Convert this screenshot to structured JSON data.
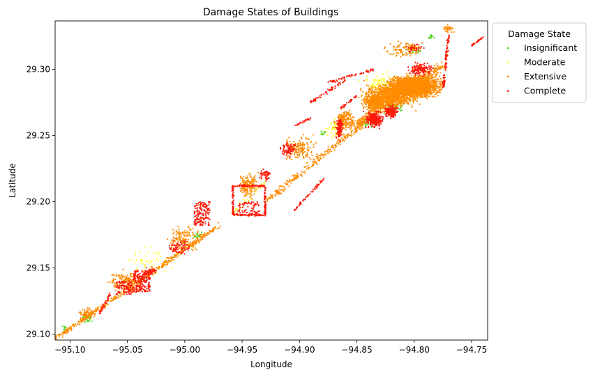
{
  "chart_data": {
    "type": "scatter",
    "title": "Damage States of Buildings",
    "xlabel": "Longitude",
    "ylabel": "Latitude",
    "xlim": [
      -95.113,
      -94.736
    ],
    "ylim": [
      29.0955,
      29.3365
    ],
    "xticks": [
      -95.1,
      -95.05,
      -95.0,
      -94.95,
      -94.9,
      -94.85,
      -94.8,
      -94.75
    ],
    "xtick_labels": [
      "−95.10",
      "−95.05",
      "−95.00",
      "−94.95",
      "−94.90",
      "−94.85",
      "−94.80",
      "−94.75"
    ],
    "yticks": [
      29.1,
      29.15,
      29.2,
      29.25,
      29.3
    ],
    "ytick_labels": [
      "29.10",
      "29.15",
      "29.20",
      "29.25",
      "29.30"
    ],
    "grid": false,
    "legend_title": "Damage State",
    "legend_position": "outside-top-right",
    "series": [
      {
        "name": "Insignificant",
        "color": "#5ad32a"
      },
      {
        "name": "Moderate",
        "color": "#ffff33"
      },
      {
        "name": "Extensive",
        "color": "#ff8c00"
      },
      {
        "name": "Complete",
        "color": "#ff1a0a"
      }
    ],
    "point_groups": [
      {
        "series": "Extensive",
        "kind": "line",
        "from": [
          -95.112,
          29.097
        ],
        "to": [
          -94.97,
          29.182
        ],
        "width": 0.003,
        "n": 420
      },
      {
        "series": "Extensive",
        "kind": "line",
        "from": [
          -94.93,
          29.2
        ],
        "to": [
          -94.84,
          29.262
        ],
        "width": 0.004,
        "n": 260
      },
      {
        "series": "Extensive",
        "kind": "line",
        "from": [
          -94.85,
          29.258
        ],
        "to": [
          -94.775,
          29.303
        ],
        "width": 0.006,
        "n": 500
      },
      {
        "series": "Extensive",
        "kind": "blob",
        "center": [
          -94.8,
          29.287
        ],
        "spread": [
          0.028,
          0.01
        ],
        "n": 2400
      },
      {
        "series": "Extensive",
        "kind": "blob",
        "center": [
          -94.82,
          29.28
        ],
        "spread": [
          0.03,
          0.012
        ],
        "n": 900
      },
      {
        "series": "Extensive",
        "kind": "blob",
        "center": [
          -94.835,
          29.275
        ],
        "spread": [
          0.012,
          0.008
        ],
        "n": 400
      },
      {
        "series": "Extensive",
        "kind": "blob",
        "center": [
          -94.86,
          29.262
        ],
        "spread": [
          0.012,
          0.01
        ],
        "n": 180
      },
      {
        "series": "Extensive",
        "kind": "blob",
        "center": [
          -94.9,
          29.24
        ],
        "spread": [
          0.018,
          0.012
        ],
        "n": 160
      },
      {
        "series": "Extensive",
        "kind": "blob",
        "center": [
          -94.945,
          29.212
        ],
        "spread": [
          0.012,
          0.012
        ],
        "n": 160
      },
      {
        "series": "Extensive",
        "kind": "blob",
        "center": [
          -95.0,
          29.172
        ],
        "spread": [
          0.018,
          0.012
        ],
        "n": 140
      },
      {
        "series": "Extensive",
        "kind": "blob",
        "center": [
          -95.05,
          29.14
        ],
        "spread": [
          0.02,
          0.01
        ],
        "n": 160
      },
      {
        "series": "Extensive",
        "kind": "blob",
        "center": [
          -95.085,
          29.115
        ],
        "spread": [
          0.01,
          0.006
        ],
        "n": 60
      },
      {
        "series": "Extensive",
        "kind": "blob",
        "center": [
          -94.81,
          29.315
        ],
        "spread": [
          0.02,
          0.008
        ],
        "n": 90
      },
      {
        "series": "Extensive",
        "kind": "blob",
        "center": [
          -94.77,
          29.33
        ],
        "spread": [
          0.006,
          0.004
        ],
        "n": 40
      },
      {
        "series": "Complete",
        "kind": "rect",
        "from": [
          -94.992,
          29.182
        ],
        "to": [
          -94.978,
          29.2
        ],
        "n": 160
      },
      {
        "series": "Complete",
        "kind": "rect",
        "from": [
          -95.045,
          29.132
        ],
        "to": [
          -95.03,
          29.148
        ],
        "n": 180
      },
      {
        "series": "Complete",
        "kind": "rect",
        "from": [
          -95.06,
          29.13
        ],
        "to": [
          -95.045,
          29.14
        ],
        "n": 100
      },
      {
        "series": "Complete",
        "kind": "ring",
        "from": [
          -94.958,
          29.19
        ],
        "to": [
          -94.93,
          29.212
        ],
        "n": 240
      },
      {
        "series": "Complete",
        "kind": "rect",
        "from": [
          -94.955,
          29.19
        ],
        "to": [
          -94.935,
          29.2
        ],
        "n": 80
      },
      {
        "series": "Complete",
        "kind": "line",
        "from": [
          -94.905,
          29.193
        ],
        "to": [
          -94.878,
          29.218
        ],
        "width": 0.0015,
        "n": 60
      },
      {
        "series": "Complete",
        "kind": "line",
        "from": [
          -94.875,
          29.29
        ],
        "to": [
          -94.835,
          29.3
        ],
        "width": 0.0015,
        "n": 60
      },
      {
        "series": "Complete",
        "kind": "line",
        "from": [
          -94.865,
          29.27
        ],
        "to": [
          -94.85,
          29.28
        ],
        "width": 0.0015,
        "n": 30
      },
      {
        "series": "Complete",
        "kind": "line",
        "from": [
          -94.905,
          29.257
        ],
        "to": [
          -94.89,
          29.263
        ],
        "width": 0.001,
        "n": 25
      },
      {
        "series": "Complete",
        "kind": "line",
        "from": [
          -94.89,
          29.275
        ],
        "to": [
          -94.86,
          29.292
        ],
        "width": 0.002,
        "n": 60
      },
      {
        "series": "Complete",
        "kind": "line",
        "from": [
          -95.075,
          29.115
        ],
        "to": [
          -95.065,
          29.13
        ],
        "width": 0.002,
        "n": 40
      },
      {
        "series": "Complete",
        "kind": "line",
        "from": [
          -94.775,
          29.285
        ],
        "to": [
          -94.77,
          29.325
        ],
        "width": 0.0025,
        "n": 90
      },
      {
        "series": "Complete",
        "kind": "line",
        "from": [
          -94.75,
          29.318
        ],
        "to": [
          -94.74,
          29.324
        ],
        "width": 0.001,
        "n": 30
      },
      {
        "series": "Complete",
        "kind": "blob",
        "center": [
          -94.835,
          29.262
        ],
        "spread": [
          0.01,
          0.008
        ],
        "n": 260
      },
      {
        "series": "Complete",
        "kind": "blob",
        "center": [
          -94.82,
          29.268
        ],
        "spread": [
          0.008,
          0.006
        ],
        "n": 150
      },
      {
        "series": "Complete",
        "kind": "blob",
        "center": [
          -94.865,
          29.255
        ],
        "spread": [
          0.004,
          0.01
        ],
        "n": 120
      },
      {
        "series": "Complete",
        "kind": "blob",
        "center": [
          -94.795,
          29.3
        ],
        "spread": [
          0.014,
          0.006
        ],
        "n": 140
      },
      {
        "series": "Complete",
        "kind": "blob",
        "center": [
          -94.91,
          29.24
        ],
        "spread": [
          0.01,
          0.008
        ],
        "n": 70
      },
      {
        "series": "Complete",
        "kind": "blob",
        "center": [
          -94.93,
          29.22
        ],
        "spread": [
          0.006,
          0.006
        ],
        "n": 50
      },
      {
        "series": "Complete",
        "kind": "blob",
        "center": [
          -95.005,
          29.165
        ],
        "spread": [
          0.012,
          0.008
        ],
        "n": 70
      },
      {
        "series": "Complete",
        "kind": "blob",
        "center": [
          -95.03,
          29.147
        ],
        "spread": [
          0.006,
          0.004
        ],
        "n": 40
      },
      {
        "series": "Complete",
        "kind": "blob",
        "center": [
          -94.8,
          29.316
        ],
        "spread": [
          0.01,
          0.004
        ],
        "n": 40
      },
      {
        "series": "Insignificant",
        "kind": "blob",
        "center": [
          -95.085,
          29.112
        ],
        "spread": [
          0.006,
          0.004
        ],
        "n": 35
      },
      {
        "series": "Insignificant",
        "kind": "blob",
        "center": [
          -94.82,
          29.27
        ],
        "spread": [
          0.015,
          0.008
        ],
        "n": 70
      },
      {
        "series": "Insignificant",
        "kind": "blob",
        "center": [
          -94.84,
          29.26
        ],
        "spread": [
          0.01,
          0.006
        ],
        "n": 40
      },
      {
        "series": "Insignificant",
        "kind": "blob",
        "center": [
          -94.8,
          29.315
        ],
        "spread": [
          0.01,
          0.004
        ],
        "n": 25
      },
      {
        "series": "Insignificant",
        "kind": "blob",
        "center": [
          -94.785,
          29.325
        ],
        "spread": [
          0.005,
          0.003
        ],
        "n": 15
      },
      {
        "series": "Insignificant",
        "kind": "blob",
        "center": [
          -94.99,
          29.175
        ],
        "spread": [
          0.008,
          0.004
        ],
        "n": 15
      },
      {
        "series": "Insignificant",
        "kind": "blob",
        "center": [
          -94.88,
          29.252
        ],
        "spread": [
          0.004,
          0.003
        ],
        "n": 10
      },
      {
        "series": "Insignificant",
        "kind": "blob",
        "center": [
          -95.105,
          29.105
        ],
        "spread": [
          0.004,
          0.003
        ],
        "n": 12
      },
      {
        "series": "Moderate",
        "kind": "line",
        "from": [
          -94.96,
          29.19
        ],
        "to": [
          -94.93,
          29.215
        ],
        "width": 0.004,
        "n": 35
      },
      {
        "series": "Moderate",
        "kind": "blob",
        "center": [
          -94.83,
          29.29
        ],
        "spread": [
          0.02,
          0.01
        ],
        "n": 70
      },
      {
        "series": "Moderate",
        "kind": "blob",
        "center": [
          -94.87,
          29.255
        ],
        "spread": [
          0.01,
          0.01
        ],
        "n": 40
      },
      {
        "series": "Moderate",
        "kind": "blob",
        "center": [
          -95.03,
          29.155
        ],
        "spread": [
          0.03,
          0.015
        ],
        "n": 50
      },
      {
        "series": "Moderate",
        "kind": "blob",
        "center": [
          -94.8,
          29.316
        ],
        "spread": [
          0.01,
          0.004
        ],
        "n": 20
      }
    ]
  }
}
